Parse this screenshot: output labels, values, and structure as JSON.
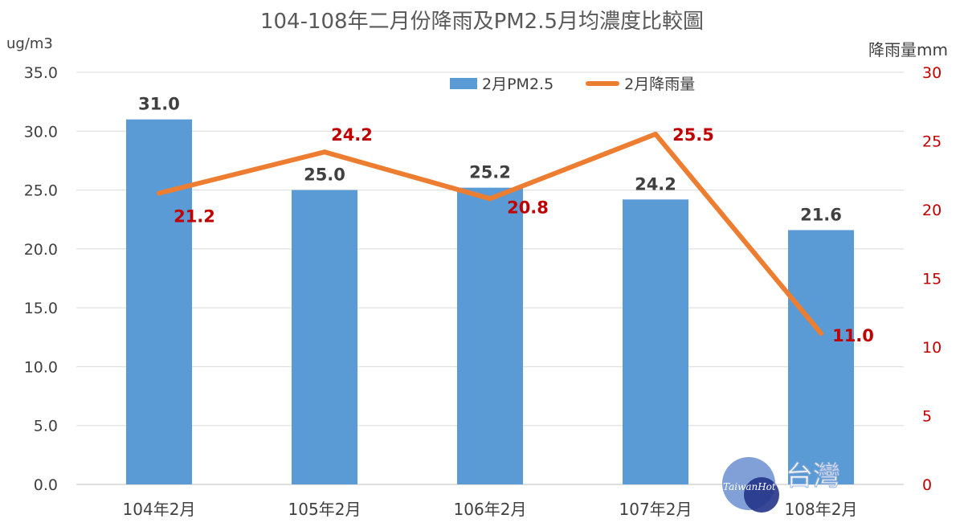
{
  "chart_data": {
    "type": "bar",
    "title": "104-108年二月份降雨及PM2.5月均濃度比較圖",
    "categories": [
      "104年2月",
      "105年2月",
      "106年2月",
      "107年2月",
      "108年2月"
    ],
    "series": [
      {
        "name": "2月PM2.5",
        "type": "bar",
        "axis": "left",
        "color": "#5b9bd5",
        "values": [
          31.0,
          25.0,
          25.2,
          24.2,
          21.6
        ]
      },
      {
        "name": "2月降雨量",
        "type": "line",
        "axis": "right",
        "color": "#ed7d31",
        "values": [
          21.2,
          24.2,
          20.8,
          25.5,
          11.0
        ]
      }
    ],
    "y_left": {
      "label": "ug/m3",
      "ylim": [
        0,
        35
      ],
      "ticks": [
        "0.0",
        "5.0",
        "10.0",
        "15.0",
        "20.0",
        "25.0",
        "30.0",
        "35.0"
      ]
    },
    "y_right": {
      "label": "降雨量mm",
      "ylim": [
        0,
        30
      ],
      "ticks": [
        "0",
        "5",
        "10",
        "15",
        "20",
        "25",
        "30"
      ],
      "tick_color": "#c00000"
    },
    "bar_labels": [
      "31.0",
      "25.0",
      "25.2",
      "24.2",
      "21.6"
    ],
    "line_labels": [
      "21.2",
      "24.2",
      "20.8",
      "25.5",
      "11.0"
    ],
    "line_label_color": "#c00000",
    "grid": true,
    "legend_position": "top-center"
  },
  "watermark": {
    "brand": "TaiwanHot",
    "text": "台灣"
  }
}
